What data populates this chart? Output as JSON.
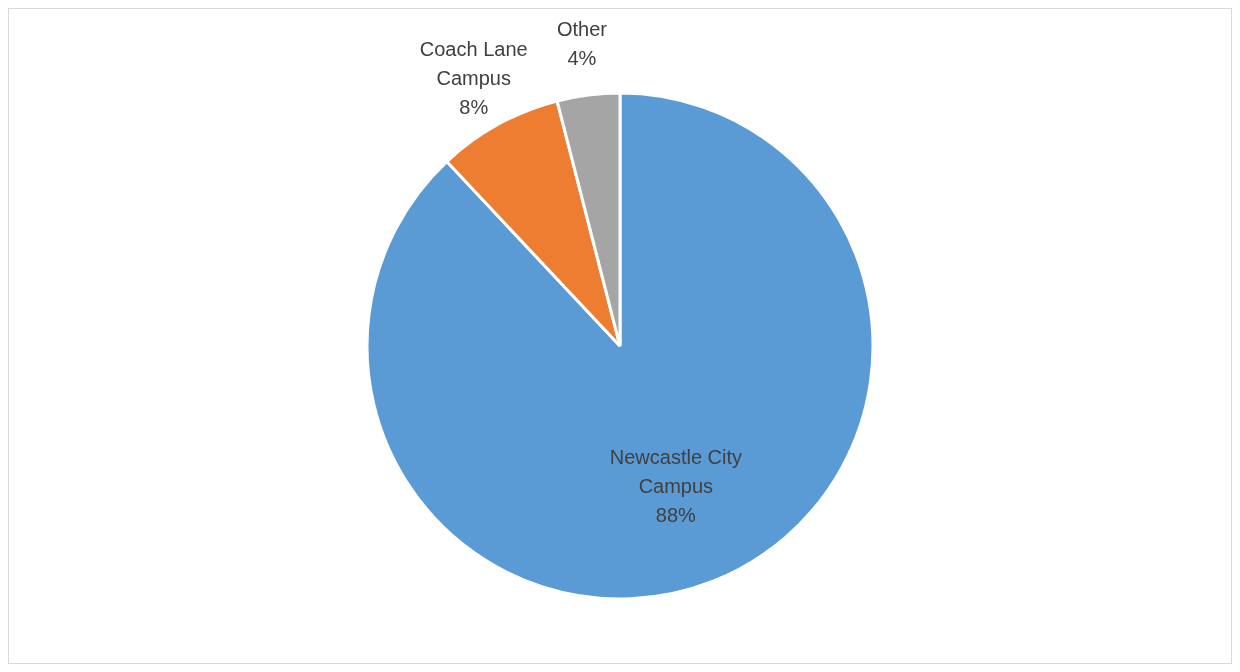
{
  "chart_data": {
    "type": "pie",
    "categories": [
      "Newcastle City Campus",
      "Coach Lane Campus",
      "Other"
    ],
    "values": [
      88,
      8,
      4
    ],
    "value_labels": [
      "88%",
      "8%",
      "4%"
    ],
    "colors": [
      "#5b9bd5",
      "#ed7d31",
      "#a5a5a5"
    ],
    "legend": false
  }
}
